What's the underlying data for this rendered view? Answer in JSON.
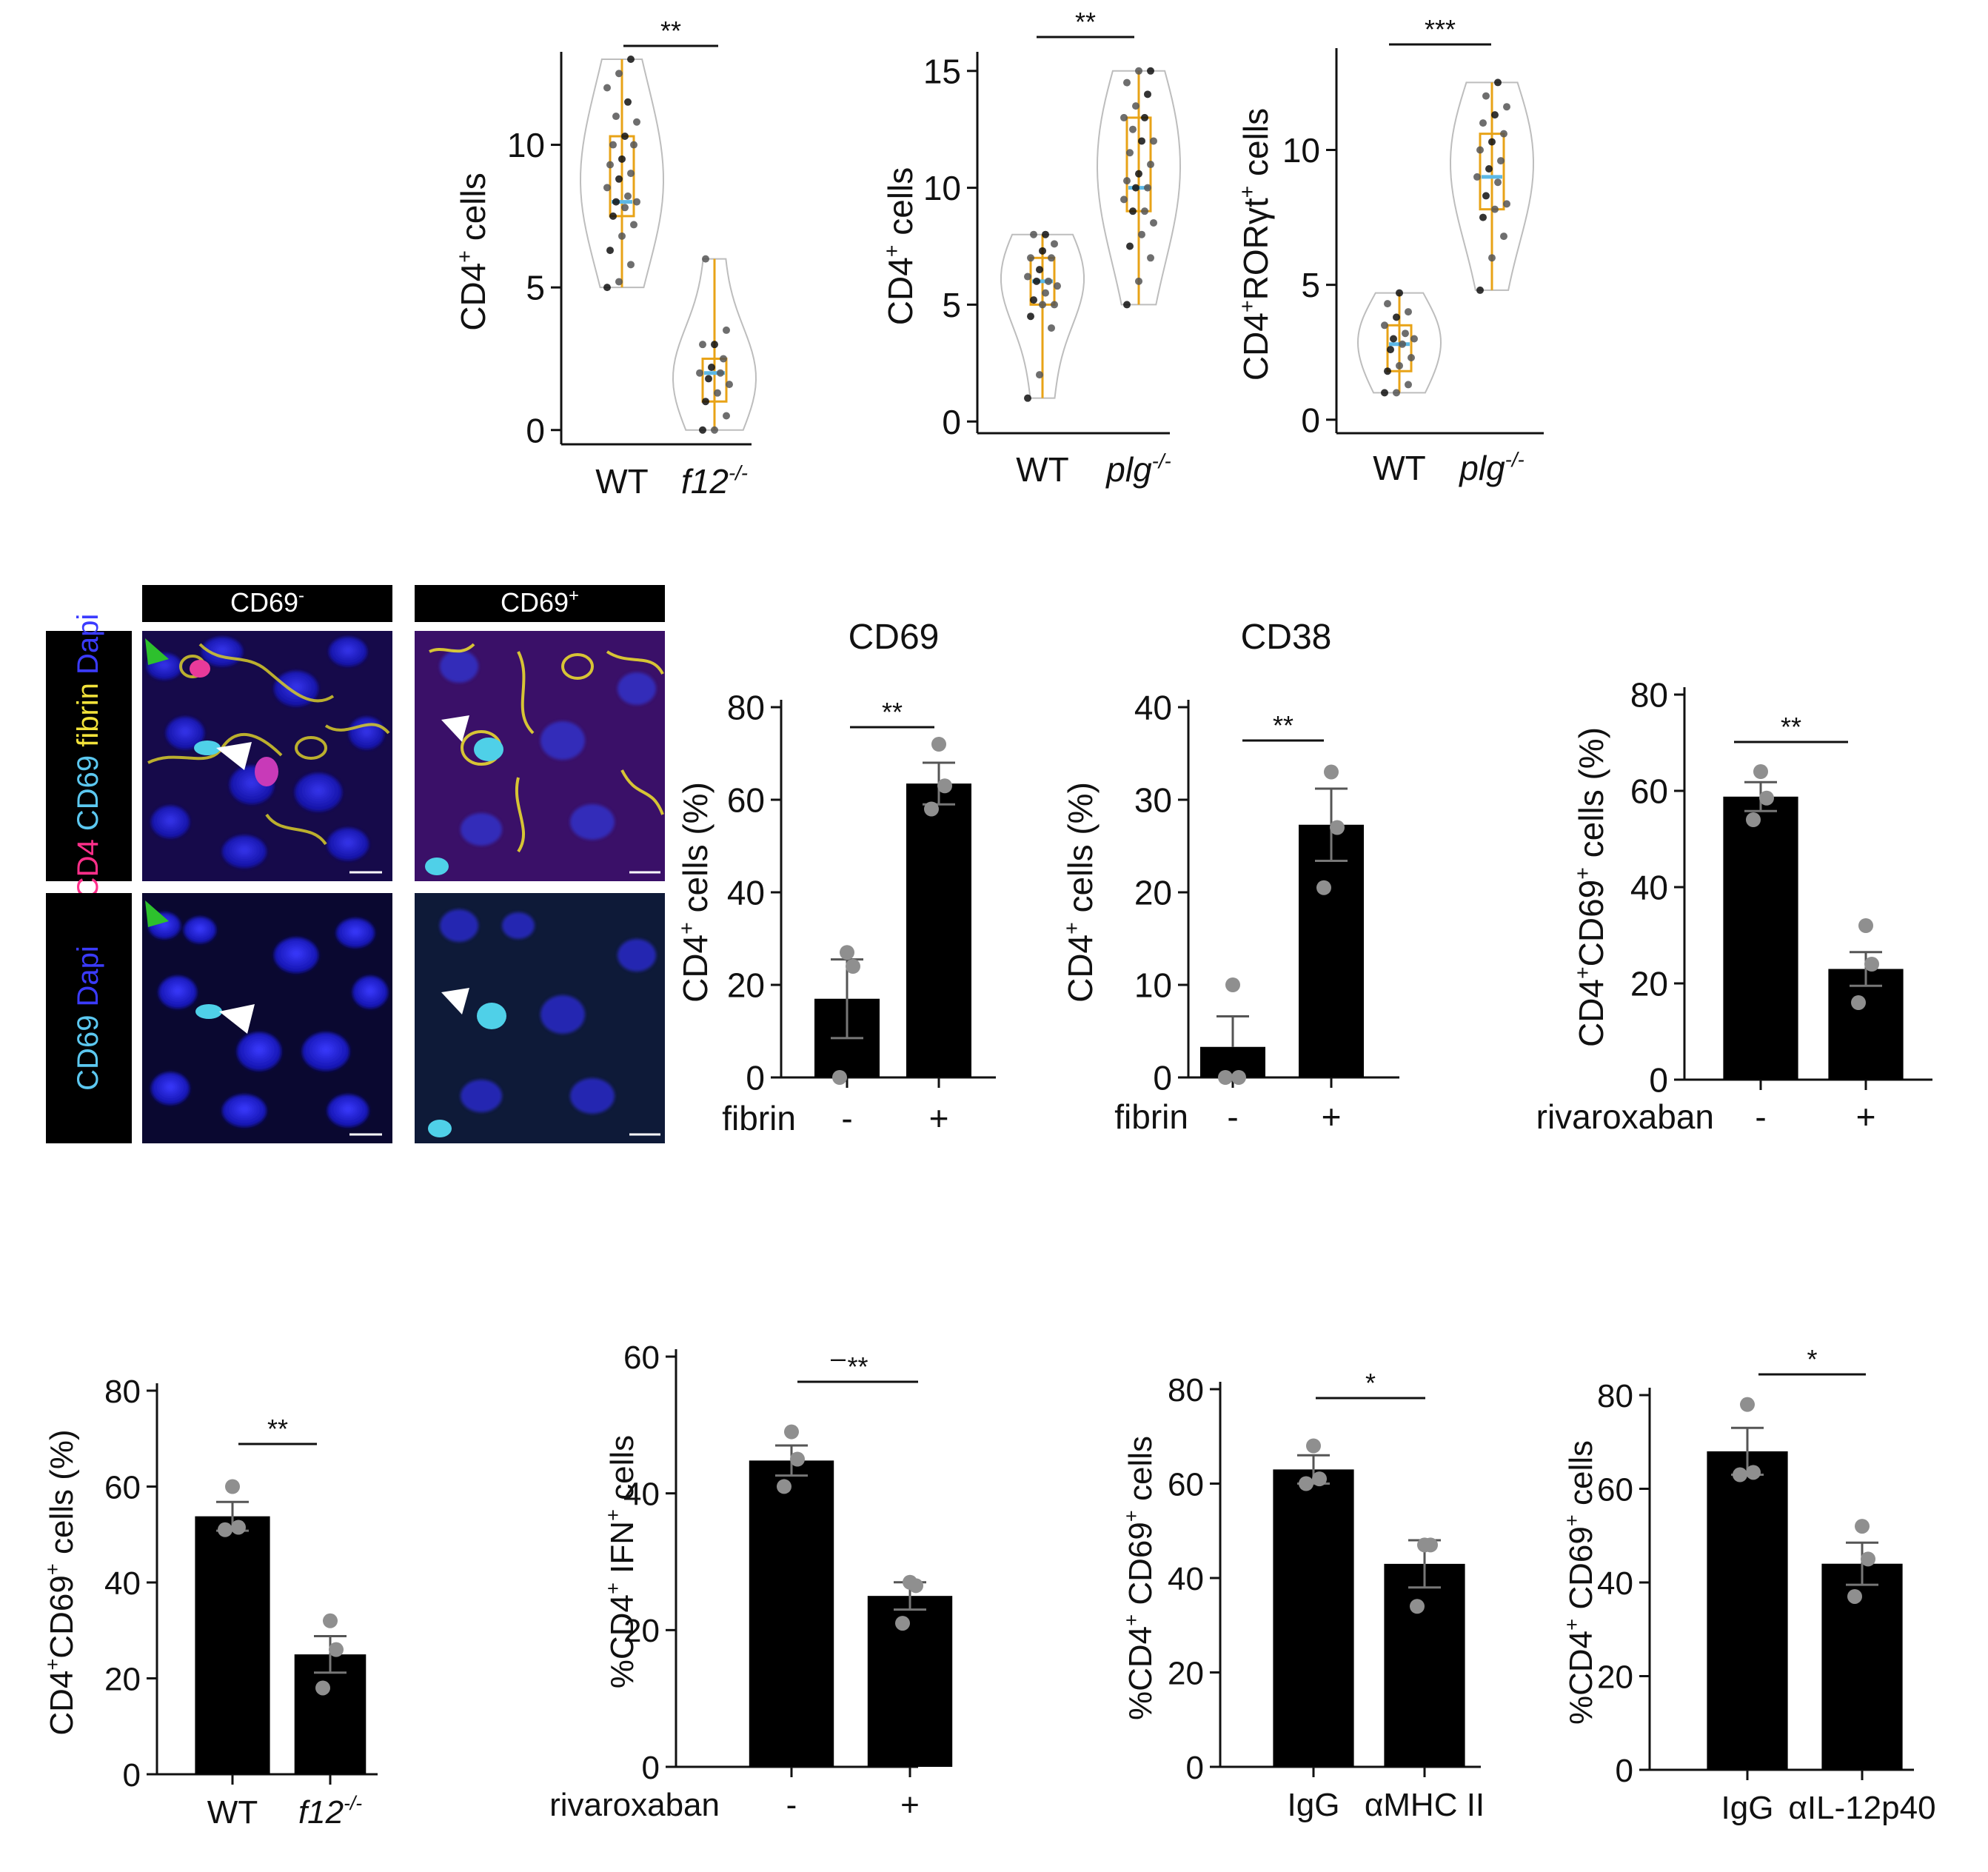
{
  "micrograph": {
    "column_labels": [
      "CD69",
      "CD69"
    ],
    "column_superscripts": [
      "-",
      "+"
    ],
    "row1_label_parts": [
      {
        "text": "CD4",
        "color": "#ff2f8a"
      },
      {
        "text": "CD69",
        "color": "#5cc8f0"
      },
      {
        "text": "fibrin",
        "color": "#f2e23a"
      },
      {
        "text": "Dapi",
        "color": "#3b3bff"
      }
    ],
    "row2_label_parts": [
      {
        "text": "CD69",
        "color": "#5cc8f0"
      },
      {
        "text": "Dapi",
        "color": "#3b3bff"
      }
    ]
  },
  "chart_data": [
    {
      "type": "violin",
      "ylabel": "CD4",
      "ylabel_sup": "+",
      "ylabel_tail": " cells",
      "categories": [
        "WT",
        "f12"
      ],
      "category_sup": [
        "",
        "-/-"
      ],
      "category_italic": [
        false,
        true
      ],
      "yticks": [
        0,
        5,
        10
      ],
      "ylim": [
        -0.5,
        13
      ],
      "significance": "**",
      "series": [
        {
          "points": [
            5,
            5.2,
            5.8,
            6.3,
            6.8,
            7.2,
            7.5,
            7.8,
            8,
            8,
            8.2,
            8.5,
            8.8,
            9,
            9.3,
            9.5,
            10,
            10,
            10.3,
            10.8,
            11,
            11.5,
            12,
            12.5,
            13
          ],
          "mean": 8
        },
        {
          "points": [
            0,
            0,
            0.5,
            1,
            1.3,
            1.6,
            1.8,
            2,
            2,
            2.2,
            2.5,
            3,
            3,
            3.5,
            6
          ],
          "mean": 2
        }
      ],
      "color": "#e8a317",
      "mean_color": "#5cb8e6"
    },
    {
      "type": "violin",
      "ylabel": "CD4",
      "ylabel_sup": "+",
      "ylabel_tail": " cells",
      "categories": [
        "WT",
        "plg"
      ],
      "category_sup": [
        "",
        "-/-"
      ],
      "category_italic": [
        false,
        true
      ],
      "yticks": [
        0,
        5,
        10,
        15
      ],
      "ylim": [
        -0.5,
        15.5
      ],
      "significance": "**",
      "series": [
        {
          "points": [
            1,
            2,
            4,
            4.5,
            5,
            5,
            5.2,
            5.5,
            5.8,
            6,
            6,
            6.2,
            6.5,
            7,
            7,
            7.3,
            7.6,
            8,
            8
          ],
          "mean": 6
        },
        {
          "points": [
            5,
            6,
            7,
            7.5,
            8,
            8.5,
            9,
            9,
            9.5,
            10,
            10,
            10.3,
            10.6,
            11,
            11.5,
            12,
            12,
            12.5,
            13,
            13,
            13.5,
            14,
            14.5,
            15,
            15
          ],
          "mean": 10
        }
      ],
      "color": "#e8a317",
      "mean_color": "#5cb8e6"
    },
    {
      "type": "violin",
      "ylabel": "CD4",
      "ylabel_sup": "+",
      "ylabel_tail": "RORγt",
      "ylabel_sup2": "+",
      "ylabel_tail2": " cells",
      "categories": [
        "WT",
        "plg"
      ],
      "category_sup": [
        "",
        "-/-"
      ],
      "category_italic": [
        false,
        true
      ],
      "yticks": [
        0,
        5,
        10
      ],
      "ylim": [
        -0.5,
        13.5
      ],
      "significance": "***",
      "series": [
        {
          "points": [
            1,
            1,
            1.3,
            1.8,
            2,
            2.3,
            2.6,
            2.8,
            3,
            3,
            3.2,
            3.5,
            3.8,
            4,
            4.3,
            4.7
          ],
          "mean": 2.8
        },
        {
          "points": [
            4.8,
            6,
            6.8,
            7.5,
            7.8,
            8,
            8.3,
            8.8,
            9,
            9.3,
            9.6,
            10,
            10.3,
            10.6,
            11,
            11.3,
            11.6,
            12,
            12.5
          ],
          "mean": 9
        }
      ],
      "color": "#e8a317",
      "mean_color": "#5cb8e6"
    },
    {
      "type": "bar",
      "title": "CD69",
      "ylabel": "CD4",
      "ylabel_sup": "+",
      "ylabel_tail": " cells (%)",
      "xlabel": "fibrin",
      "categories": [
        "-",
        "+"
      ],
      "values": [
        17,
        63.5
      ],
      "errors": [
        8.5,
        4.5
      ],
      "points": [
        [
          0,
          24,
          27
        ],
        [
          58,
          63,
          72
        ]
      ],
      "yticks": [
        0,
        20,
        40,
        60,
        80
      ],
      "ylim": [
        0,
        80
      ],
      "significance": "**"
    },
    {
      "type": "bar",
      "title": "CD38",
      "ylabel": "CD4",
      "ylabel_sup": "+",
      "ylabel_tail": " cells (%)",
      "xlabel": "fibrin",
      "categories": [
        "-",
        "+"
      ],
      "values": [
        3.3,
        27.3
      ],
      "errors": [
        3.3,
        3.9
      ],
      "points": [
        [
          0,
          0,
          10
        ],
        [
          20.5,
          27,
          33
        ]
      ],
      "yticks": [
        0,
        10,
        20,
        30,
        40
      ],
      "ylim": [
        0,
        40
      ],
      "significance": "**"
    },
    {
      "type": "bar",
      "ylabel": "CD4",
      "ylabel_sup": "+",
      "ylabel_tail": "CD69",
      "ylabel_sup2": "+",
      "ylabel_tail2": " cells (%)",
      "xlabel": "rivaroxaban",
      "categories": [
        "-",
        "+"
      ],
      "values": [
        58.8,
        23
      ],
      "errors": [
        3,
        3.5
      ],
      "points": [
        [
          54,
          58.5,
          64
        ],
        [
          16,
          24,
          32
        ]
      ],
      "yticks": [
        0,
        20,
        40,
        60,
        80
      ],
      "ylim": [
        0,
        80
      ],
      "significance": "**"
    },
    {
      "type": "bar",
      "ylabel": "CD4",
      "ylabel_sup": "+",
      "ylabel_tail": "CD69",
      "ylabel_sup2": "+",
      "ylabel_tail2": " cells (%)",
      "categories": [
        "WT",
        "f12"
      ],
      "category_sup": [
        "",
        "-/-"
      ],
      "category_italic": [
        false,
        true
      ],
      "values": [
        53.8,
        25
      ],
      "errors": [
        3,
        3.8
      ],
      "points": [
        [
          51,
          51.5,
          60
        ],
        [
          18,
          26,
          32
        ]
      ],
      "yticks": [
        0,
        20,
        40,
        60,
        80
      ],
      "ylim": [
        0,
        80
      ],
      "significance": "**"
    },
    {
      "type": "bar",
      "ylabel": "%CD4",
      "ylabel_sup": "+",
      "ylabel_tail": " IFN",
      "ylabel_sup2": "+",
      "ylabel_tail2": " cells",
      "xlabel": "rivaroxaban",
      "categories": [
        "-",
        "+"
      ],
      "values": [
        44.8,
        25
      ],
      "errors": [
        2.2,
        2
      ],
      "points": [
        [
          41,
          45,
          49
        ],
        [
          21,
          26.5,
          27
        ]
      ],
      "yticks": [
        0,
        20,
        40,
        60
      ],
      "ylim": [
        0,
        60
      ],
      "significance": "**",
      "dash_mark": "–"
    },
    {
      "type": "bar",
      "ylabel": "%CD4",
      "ylabel_sup": "+",
      "ylabel_tail": " CD69",
      "ylabel_sup2": "+",
      "ylabel_tail2": " cells",
      "categories": [
        "IgG",
        "αMHC II"
      ],
      "values": [
        63,
        43
      ],
      "errors": [
        3,
        5
      ],
      "points": [
        [
          60,
          61,
          68
        ],
        [
          34,
          47,
          47
        ]
      ],
      "yticks": [
        0,
        20,
        40,
        60,
        80
      ],
      "ylim": [
        0,
        80
      ],
      "significance": "*"
    },
    {
      "type": "bar",
      "ylabel": "%CD4",
      "ylabel_sup": "+",
      "ylabel_tail": " CD69",
      "ylabel_sup2": "+",
      "ylabel_tail2": " cells",
      "categories": [
        "IgG",
        "αIL-12p40"
      ],
      "values": [
        68,
        44
      ],
      "errors": [
        5,
        4.5
      ],
      "points": [
        [
          63,
          63.5,
          78
        ],
        [
          37,
          45,
          52
        ]
      ],
      "yticks": [
        0,
        20,
        40,
        60,
        80
      ],
      "ylim": [
        0,
        80
      ],
      "significance": "*"
    }
  ]
}
